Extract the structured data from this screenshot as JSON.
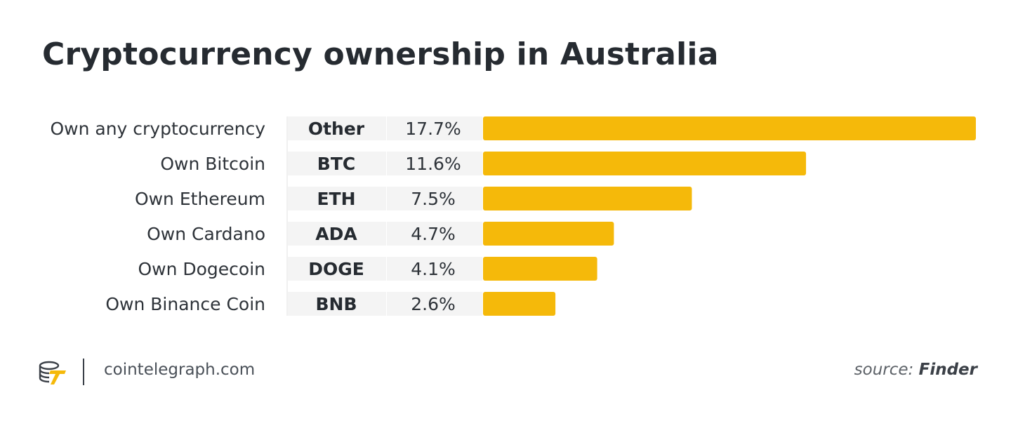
{
  "title": "Cryptocurrency ownership in Australia",
  "colors": {
    "bar": "#F5B90A",
    "ticker_bg": "#F4F4F4",
    "text": "#262B31",
    "logo": "#F5B90A"
  },
  "chart_data": {
    "type": "bar",
    "orientation": "horizontal",
    "unit": "%",
    "categories": [
      "Own any cryptocurrency",
      "Own Bitcoin",
      "Own Ethereum",
      "Own Cardano",
      "Own Dogecoin",
      "Own Binance Coin"
    ],
    "tickers": [
      "Other",
      "BTC",
      "ETH",
      "ADA",
      "DOGE",
      "BNB"
    ],
    "values": [
      17.7,
      11.6,
      7.5,
      4.7,
      4.1,
      2.6
    ],
    "value_labels": [
      "17.7%",
      "11.6%",
      "7.5%",
      "4.7%",
      "4.1%",
      "2.6%"
    ],
    "xlim": [
      0,
      17.7
    ],
    "grid": false,
    "legend": "none"
  },
  "footer": {
    "site": "cointelegraph.com",
    "source_prefix": "source:",
    "source_name": "Finder",
    "logo_icon": "cointelegraph-logo-icon"
  }
}
